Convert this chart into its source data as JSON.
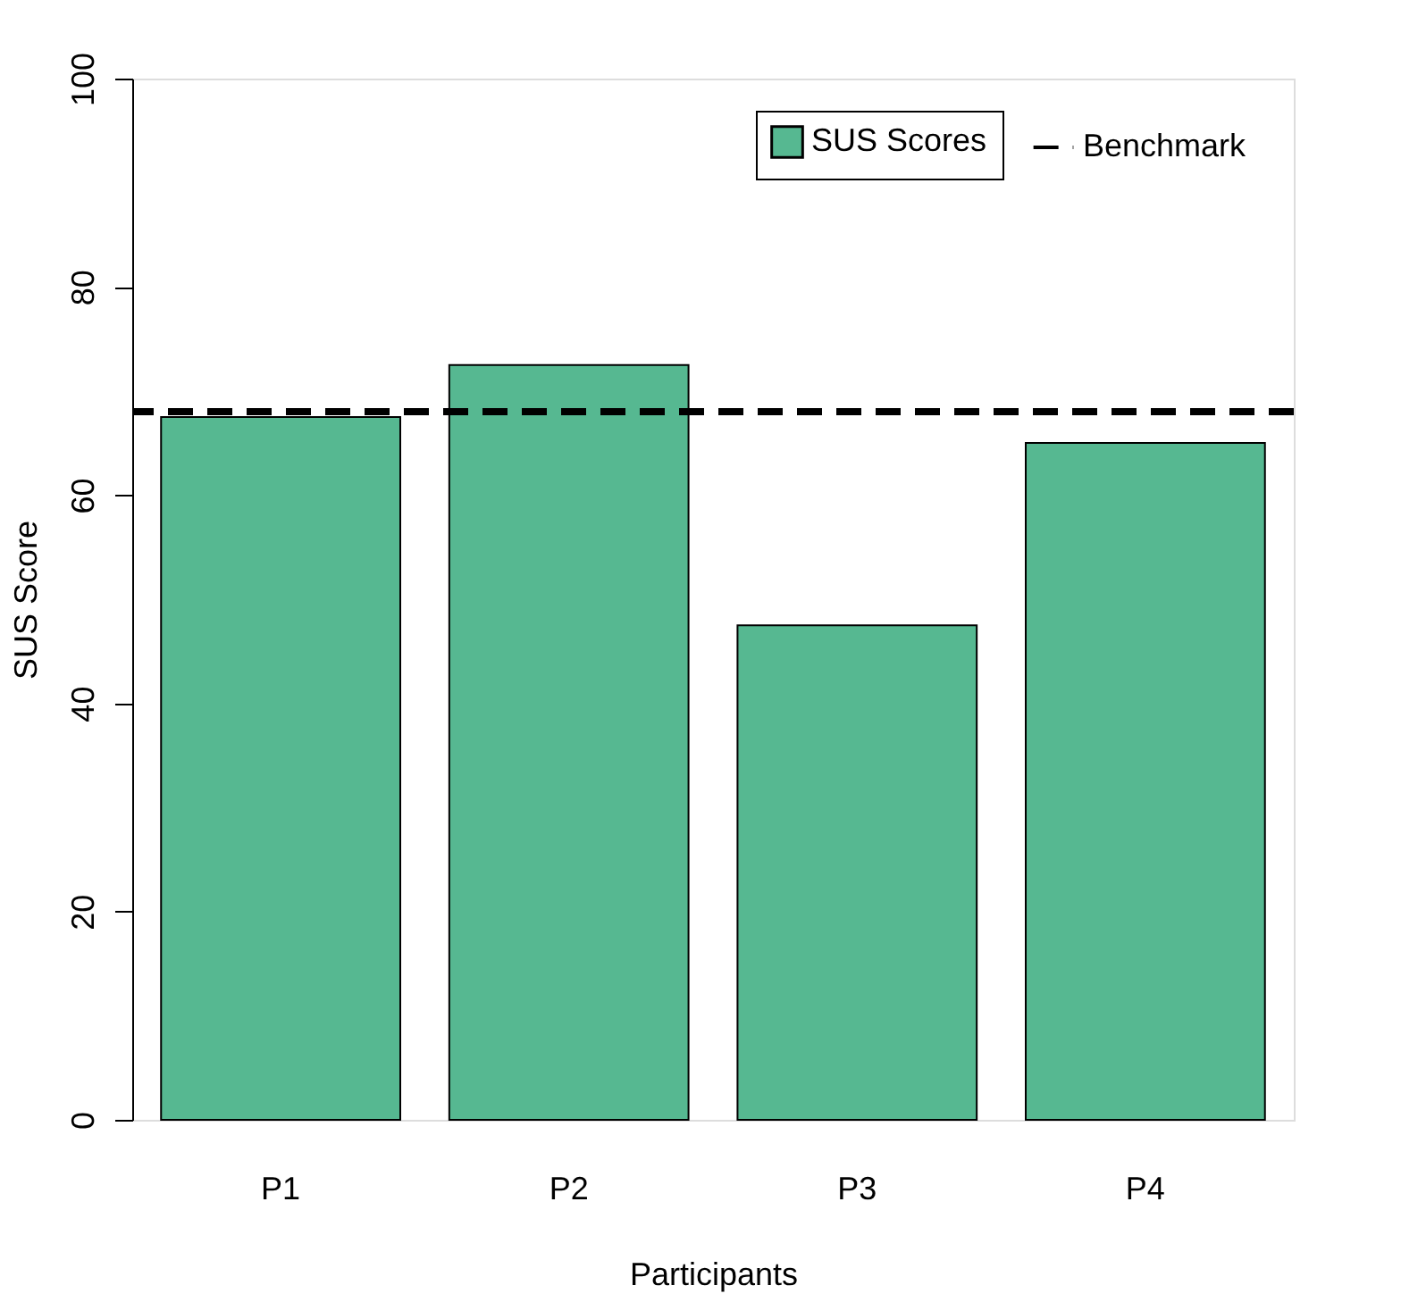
{
  "chart_data": {
    "type": "bar",
    "xlabel": "Participants",
    "ylabel": "SUS Score",
    "categories": [
      "P1",
      "P2",
      "P3",
      "P4"
    ],
    "series": [
      {
        "name": "SUS Scores",
        "color": "#56b891",
        "values": [
          67.5,
          72.5,
          47.5,
          65
        ]
      }
    ],
    "ylim": [
      0,
      100
    ],
    "yticks": [
      0,
      20,
      40,
      60,
      80,
      100
    ],
    "ref_lines": [
      {
        "axis": "y",
        "value": 68,
        "label": "Benchmark",
        "color": "#000000",
        "line_style": "dashed"
      }
    ],
    "legend": "top right",
    "grid": false
  }
}
